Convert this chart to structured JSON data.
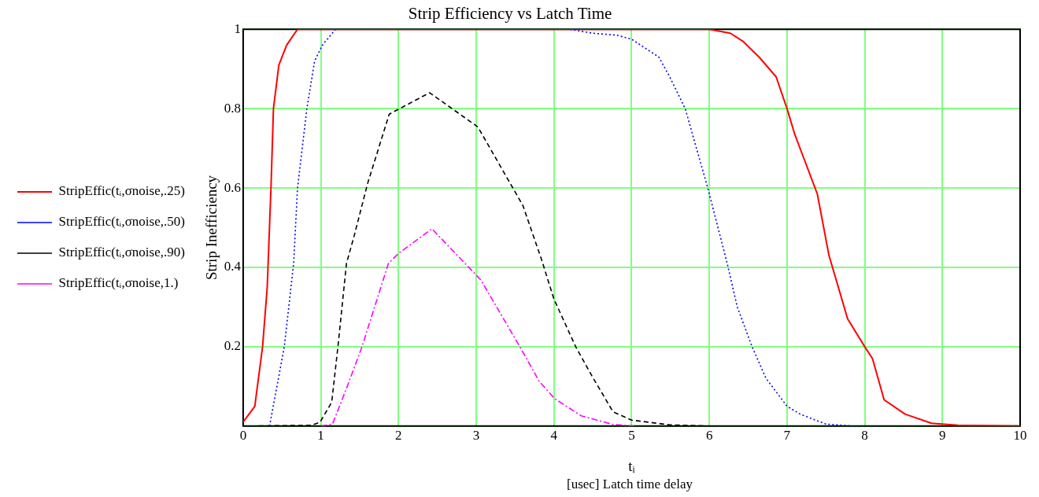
{
  "chart_data": {
    "type": "line",
    "title": "Strip Efficiency vs Latch Time",
    "xlabel": "tᵢ",
    "ylabel": "Strip Inefficiency",
    "annotations": [
      "[usec] Latch time delay"
    ],
    "xlim": [
      0,
      10
    ],
    "ylim": [
      0,
      1
    ],
    "xticks": [
      0,
      1,
      2,
      3,
      4,
      5,
      6,
      7,
      8,
      9,
      10
    ],
    "yticks": [
      {
        "value": 0,
        "label": null
      },
      0.2,
      0.4,
      0.6,
      0.8,
      1
    ],
    "grid": true,
    "legend": "left",
    "marker": "none",
    "series": [
      {
        "name": "StripEffic(tᵢ,σnoise,.25)",
        "color": "#ff0000",
        "line_style": "solid",
        "x": [
          0,
          0.15,
          0.25,
          0.31,
          0.36,
          0.39,
          0.46,
          0.56,
          0.7,
          6,
          6.27,
          6.43,
          6.64,
          6.86,
          7,
          7.1,
          7.39,
          7.54,
          7.78,
          8,
          8.1,
          8.25,
          8.52,
          8.86,
          9.2,
          10
        ],
        "values": [
          0.01,
          0.05,
          0.2,
          0.35,
          0.61,
          0.8,
          0.91,
          0.96,
          1,
          1,
          0.99,
          0.97,
          0.93,
          0.88,
          0.8,
          0.735,
          0.585,
          0.43,
          0.27,
          0.2,
          0.17,
          0.066,
          0.03,
          0.007,
          0.002,
          0
        ]
      },
      {
        "name": "StripEffic(tᵢ,σnoise,.50)",
        "color": "#0000ff",
        "line_style": "dotted",
        "x": [
          0.34,
          0.53,
          0.65,
          0.7,
          0.82,
          0.92,
          1.02,
          1.19,
          4.2,
          4.5,
          4.81,
          5,
          5.35,
          5.49,
          5.69,
          5.82,
          5.98,
          6.23,
          6.36,
          6.55,
          6.73,
          7,
          7.17,
          7.5,
          7.85
        ],
        "values": [
          0,
          0.2,
          0.41,
          0.6,
          0.8,
          0.92,
          0.96,
          1,
          1,
          0.99,
          0.985,
          0.975,
          0.93,
          0.88,
          0.8,
          0.71,
          0.6,
          0.41,
          0.3,
          0.2,
          0.12,
          0.05,
          0.03,
          0.005,
          0
        ]
      },
      {
        "name": "StripEffic(tᵢ,σnoise,.90)",
        "color": "#000000",
        "line_style": "dashed",
        "x": [
          0.1,
          0.88,
          0.99,
          1.14,
          1.22,
          1.33,
          1.43,
          1.6,
          1.88,
          2.4,
          3.02,
          3.12,
          3.6,
          3.84,
          4,
          4.28,
          4.49,
          4.76,
          5,
          5.49,
          6
        ],
        "values": [
          0,
          0.002,
          0.01,
          0.06,
          0.2,
          0.41,
          0.48,
          0.61,
          0.786,
          0.84,
          0.754,
          0.72,
          0.556,
          0.42,
          0.32,
          0.2,
          0.126,
          0.036,
          0.015,
          0.003,
          0
        ]
      },
      {
        "name": "StripEffic(tᵢ,σnoise,1.)",
        "color": "#ff00ff",
        "line_style": "dashdot",
        "x": [
          1.0,
          1.15,
          1.34,
          1.53,
          1.87,
          2,
          2.43,
          3.06,
          3.57,
          3.81,
          4.01,
          4.35,
          4.76,
          5.03
        ],
        "values": [
          0,
          0.005,
          0.1,
          0.2,
          0.41,
          0.435,
          0.497,
          0.368,
          0.197,
          0.113,
          0.069,
          0.026,
          0.004,
          0
        ]
      }
    ]
  }
}
